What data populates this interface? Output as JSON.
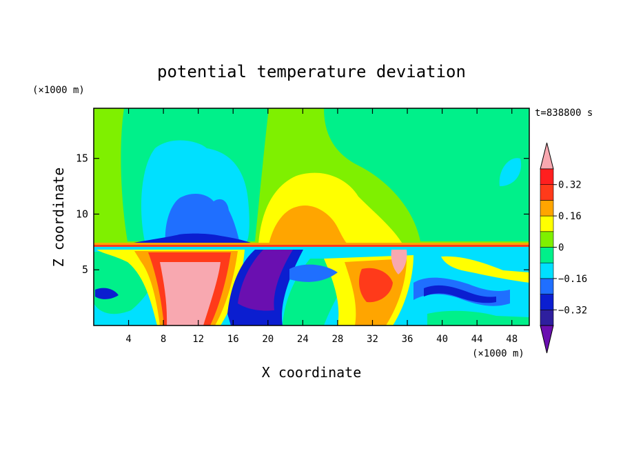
{
  "chart_data": {
    "type": "heatmap",
    "title": "potential temperature deviation",
    "xlabel": "X coordinate",
    "ylabel": "Z coordinate",
    "x_unit": "(×1000 m)",
    "y_unit": "(×1000 m)",
    "time_label": "t=838800 s",
    "xlim": [
      0,
      50
    ],
    "ylim": [
      0,
      19.5
    ],
    "x_ticks": [
      4,
      8,
      12,
      16,
      20,
      24,
      28,
      32,
      36,
      40,
      44,
      48
    ],
    "y_ticks": [
      5,
      10,
      15
    ],
    "colorbar": {
      "levels": [
        -0.4,
        -0.32,
        -0.24,
        -0.16,
        -0.08,
        0,
        0.08,
        0.16,
        0.24,
        0.32,
        0.4
      ],
      "tick_labels": [
        "0.32",
        "0.16",
        "0",
        "−0.16",
        "−0.32"
      ],
      "tick_values": [
        0.32,
        0.16,
        0,
        -0.16,
        -0.32
      ],
      "colors": [
        "#6a0fb0",
        "#2e1f9e",
        "#0b1ed0",
        "#1f6fff",
        "#00e0ff",
        "#00f08a",
        "#7ff000",
        "#ffff00",
        "#ffa500",
        "#ff3a1a",
        "#ff1f1f",
        "#f8a8b0"
      ],
      "extend": "both"
    },
    "features": [
      {
        "name": "upper cool plume",
        "x": 10,
        "z": 11,
        "value": -0.24
      },
      {
        "name": "upper warm dome",
        "x": 24,
        "z": 10,
        "value": 0.2
      },
      {
        "name": "lower warm wave",
        "x": 10,
        "z": 4,
        "value": 0.4
      },
      {
        "name": "lower cold wedge",
        "x": 20,
        "z": 4,
        "value": -0.4
      },
      {
        "name": "tropopause layer",
        "z": 7.3,
        "value": 0.2
      }
    ]
  }
}
